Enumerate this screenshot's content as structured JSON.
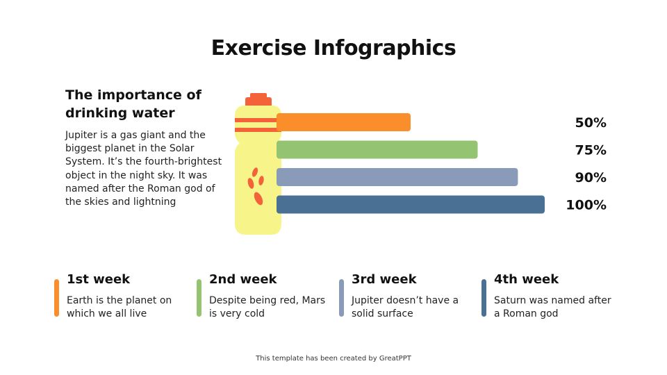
{
  "title": "Exercise Infographics",
  "intro": {
    "heading": "The importance of drinking water",
    "text": "Jupiter is a gas giant and the biggest planet in the Solar System. It’s the fourth-brightest object in the night sky. It was named after the Roman god of the skies and lightning"
  },
  "colors": {
    "bottle_body": "#F7F58A",
    "bottle_accent": "#F4623A",
    "orange": "#F98E2B",
    "green": "#94C472",
    "lavender": "#8A9BBA",
    "blue": "#4A7094"
  },
  "chart_data": {
    "type": "bar",
    "orientation": "horizontal",
    "categories": [
      "1st week",
      "2nd week",
      "3rd week",
      "4th week"
    ],
    "values": [
      50,
      75,
      90,
      100
    ],
    "labels": [
      "50%",
      "75%",
      "90%",
      "100%"
    ],
    "xlim": [
      0,
      100
    ],
    "colors": [
      "#F98E2B",
      "#94C472",
      "#8A9BBA",
      "#4A7094"
    ]
  },
  "weeks": [
    {
      "title": "1st week",
      "text": "Earth is the planet on which we all live",
      "color": "#F98E2B"
    },
    {
      "title": "2nd week",
      "text": "Despite being red, Mars is very cold",
      "color": "#94C472"
    },
    {
      "title": "3rd week",
      "text": "Jupiter doesn’t have a solid surface",
      "color": "#8A9BBA"
    },
    {
      "title": "4th week",
      "text": "Saturn was named after a Roman god",
      "color": "#4A7094"
    }
  ],
  "footer": "This template has been created by GreatPPT"
}
